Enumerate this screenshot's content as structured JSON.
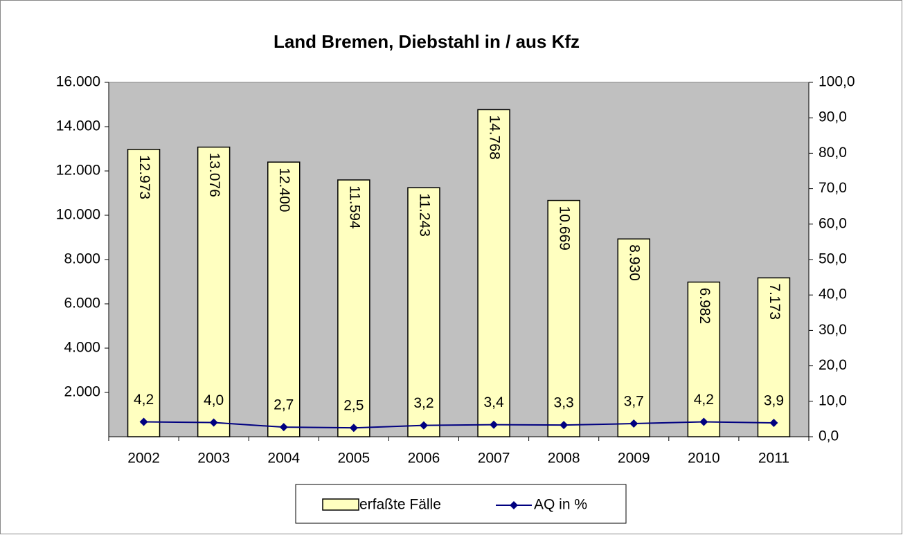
{
  "chart_data": {
    "type": "bar",
    "title": "Land Bremen, Diebstahl in / aus Kfz",
    "categories": [
      "2002",
      "2003",
      "2004",
      "2005",
      "2006",
      "2007",
      "2008",
      "2009",
      "2010",
      "2011"
    ],
    "series": [
      {
        "name": "erfaßte Fälle",
        "type": "bar",
        "color": "#ffffc0",
        "values": [
          12973,
          13076,
          12400,
          11594,
          11243,
          14768,
          10669,
          8930,
          6982,
          7173
        ],
        "value_labels": [
          "12.973",
          "13.076",
          "12.400",
          "11.594",
          "11.243",
          "14.768",
          "10.669",
          "8.930",
          "6.982",
          "7.173"
        ]
      },
      {
        "name": "AQ in %",
        "type": "line",
        "axis": "y2",
        "color": "#000080",
        "values": [
          4.2,
          4.0,
          2.7,
          2.5,
          3.2,
          3.4,
          3.3,
          3.7,
          4.2,
          3.9
        ],
        "value_labels": [
          "4,2",
          "4,0",
          "2,7",
          "2,5",
          "3,2",
          "3,4",
          "3,3",
          "3,7",
          "4,2",
          "3,9"
        ]
      }
    ],
    "ylim": [
      0,
      16000
    ],
    "yticks": [
      {
        "value": 2000,
        "label": "2.000"
      },
      {
        "value": 4000,
        "label": "4.000"
      },
      {
        "value": 6000,
        "label": "6.000"
      },
      {
        "value": 8000,
        "label": "8.000"
      },
      {
        "value": 10000,
        "label": "10.000"
      },
      {
        "value": 12000,
        "label": "12.000"
      },
      {
        "value": 14000,
        "label": "14.000"
      },
      {
        "value": 16000,
        "label": "16.000"
      }
    ],
    "y2lim": [
      0,
      100
    ],
    "y2ticks": [
      {
        "value": 0,
        "label": "0,0"
      },
      {
        "value": 10,
        "label": "10,0"
      },
      {
        "value": 20,
        "label": "20,0"
      },
      {
        "value": 30,
        "label": "30,0"
      },
      {
        "value": 40,
        "label": "40,0"
      },
      {
        "value": 50,
        "label": "50,0"
      },
      {
        "value": 60,
        "label": "60,0"
      },
      {
        "value": 70,
        "label": "70,0"
      },
      {
        "value": 80,
        "label": "80,0"
      },
      {
        "value": 90,
        "label": "90,0"
      },
      {
        "value": 100,
        "label": "100,0"
      }
    ],
    "plot_background": "#c0c0c0",
    "legend": "bottom"
  }
}
